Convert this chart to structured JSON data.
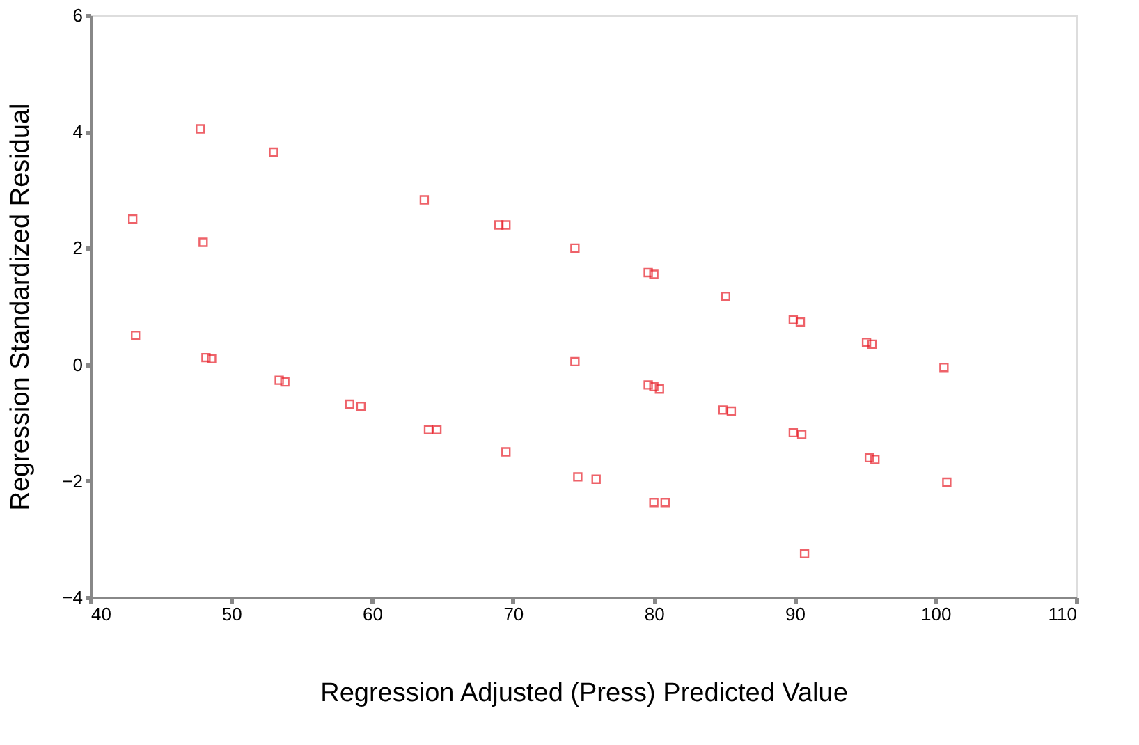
{
  "chart_data": {
    "type": "scatter",
    "xlabel": "Regression Adjusted (Press) Predicted Value",
    "ylabel": "Regression Standardized Residual",
    "x": [
      43,
      43.2,
      47.8,
      48,
      48.2,
      48.6,
      53,
      53.4,
      53.8,
      58.4,
      59.2,
      63.7,
      64,
      64.6,
      69,
      69.5,
      69.5,
      74.4,
      74.4,
      74.6,
      75.9,
      79.6,
      80,
      79.6,
      80,
      80.4,
      80,
      80.8,
      85.1,
      84.9,
      85.5,
      89.9,
      90.4,
      89.9,
      90.5,
      90.7,
      95.1,
      95.5,
      95.3,
      95.7,
      100.6,
      100.8
    ],
    "series": [
      {
        "color": "#e8202a",
        "values": [
          2.5,
          0.5,
          4.05,
          2.1,
          0.12,
          0.1,
          3.65,
          -0.27,
          -0.3,
          -0.68,
          -0.72,
          2.83,
          -1.12,
          -1.12,
          2.4,
          2.4,
          -1.5,
          2.0,
          0.05,
          -1.93,
          -1.97,
          1.58,
          1.55,
          -0.35,
          -0.38,
          -0.42,
          -2.37,
          -2.37,
          1.17,
          -0.78,
          -0.8,
          0.77,
          0.73,
          -1.17,
          -1.2,
          -3.25,
          0.38,
          0.35,
          -1.6,
          -1.63,
          -0.05,
          -2.02
        ]
      }
    ],
    "xlim": [
      40,
      110
    ],
    "xticks": [
      40,
      50,
      60,
      70,
      80,
      90,
      100,
      110
    ],
    "ylim": [
      -4,
      6
    ],
    "yticks": [
      -4,
      -2,
      0,
      2,
      4,
      6
    ],
    "marker": "square",
    "grid": false,
    "legend": false
  }
}
